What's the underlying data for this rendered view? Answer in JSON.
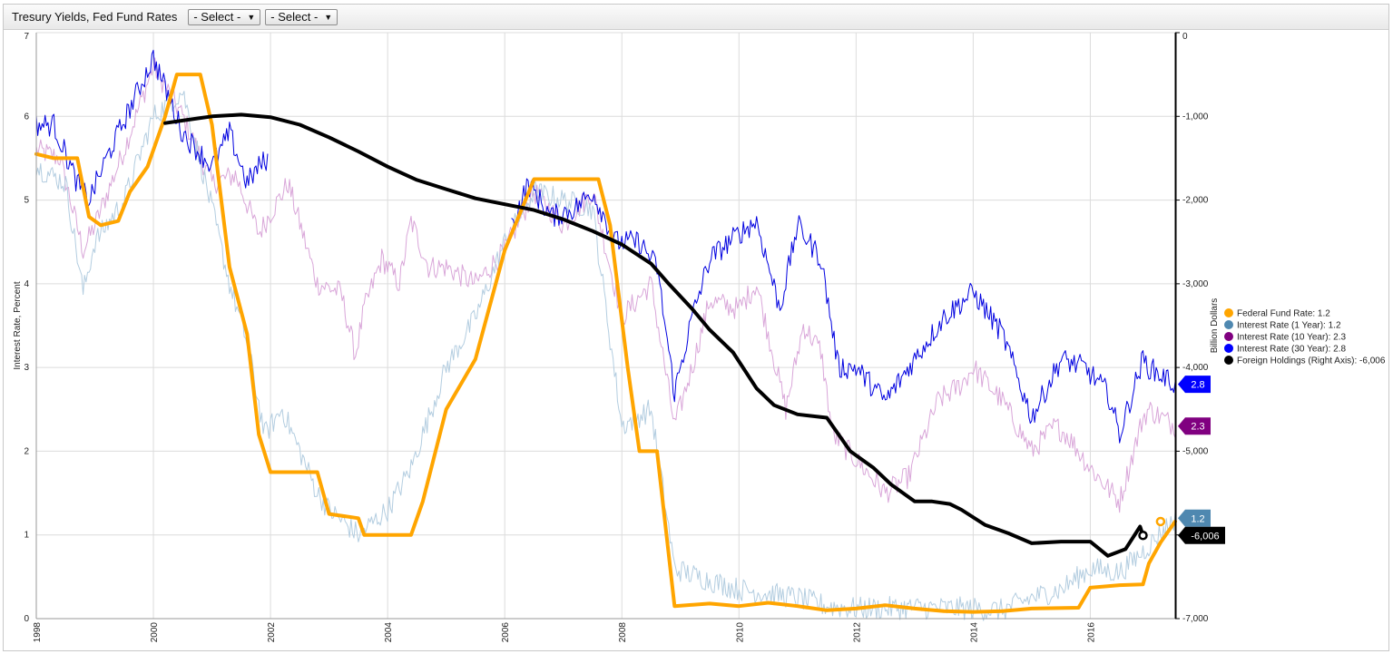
{
  "toolbar": {
    "title": "Tresury Yields, Fed Fund Rates",
    "select1": "- Select -",
    "select2": "- Select -",
    "caret": "▼"
  },
  "chart_data": {
    "type": "line",
    "grid": true,
    "legend_position": "right",
    "x_axis": {
      "min": 1998.0,
      "max": 2017.45,
      "ticks": [
        1998,
        2000,
        2002,
        2004,
        2006,
        2008,
        2010,
        2012,
        2014,
        2016
      ],
      "tick_labels": [
        "1998",
        "2000",
        "2002",
        "2004",
        "2006",
        "2008",
        "2010",
        "2012",
        "2014",
        "2016"
      ]
    },
    "y_left": {
      "label": "Interest Rate, Percent",
      "min": 0,
      "max": 7,
      "ticks": [
        0,
        1,
        2,
        3,
        4,
        5,
        6,
        7
      ],
      "tick_labels": [
        "0",
        "1",
        "2",
        "3",
        "4",
        "5",
        "6",
        "7"
      ]
    },
    "y_right": {
      "label": "Billion Dollars",
      "min": -7000,
      "max": 0,
      "ticks": [
        0,
        -1000,
        -2000,
        -3000,
        -4000,
        -5000,
        -6000,
        -7000
      ],
      "tick_labels": [
        "0",
        "-1,000",
        "-2,000",
        "-3,000",
        "-4,000",
        "-5,000",
        "-6,000",
        "-7,000"
      ]
    },
    "series": [
      {
        "name": "Interest Rate (10 Year)",
        "axis": "left",
        "color": "#800080",
        "legend_color": "#800080",
        "line_color": "#d9a6d9",
        "width": 1,
        "points": [
          [
            1998,
            5.6
          ],
          [
            1998.4,
            5.5
          ],
          [
            1998.8,
            4.4
          ],
          [
            1999.0,
            4.7
          ],
          [
            1999.5,
            5.6
          ],
          [
            2000.0,
            6.6
          ],
          [
            2000.5,
            6.0
          ],
          [
            2001.0,
            5.2
          ],
          [
            2001.4,
            5.3
          ],
          [
            2001.8,
            4.6
          ],
          [
            2002.3,
            5.2
          ],
          [
            2002.8,
            4.0
          ],
          [
            2003.2,
            3.9
          ],
          [
            2003.45,
            3.15
          ],
          [
            2003.6,
            3.7
          ],
          [
            2003.9,
            4.3
          ],
          [
            2004.2,
            4.0
          ],
          [
            2004.4,
            4.75
          ],
          [
            2004.7,
            4.2
          ],
          [
            2005.0,
            4.2
          ],
          [
            2005.5,
            4.0
          ],
          [
            2006.0,
            4.4
          ],
          [
            2006.5,
            5.1
          ],
          [
            2007.0,
            4.7
          ],
          [
            2007.5,
            5.1
          ],
          [
            2008.0,
            3.6
          ],
          [
            2008.5,
            4.0
          ],
          [
            2008.9,
            2.3
          ],
          [
            2009.2,
            3.0
          ],
          [
            2009.5,
            3.8
          ],
          [
            2010.0,
            3.7
          ],
          [
            2010.3,
            4.0
          ],
          [
            2010.8,
            2.5
          ],
          [
            2011.1,
            3.5
          ],
          [
            2011.4,
            3.2
          ],
          [
            2011.6,
            2.2
          ],
          [
            2012.0,
            1.9
          ],
          [
            2012.5,
            1.5
          ],
          [
            2012.9,
            1.7
          ],
          [
            2013.4,
            2.6
          ],
          [
            2013.8,
            2.8
          ],
          [
            2014.0,
            3.0
          ],
          [
            2014.5,
            2.6
          ],
          [
            2015.0,
            2.0
          ],
          [
            2015.4,
            2.3
          ],
          [
            2015.6,
            2.2
          ],
          [
            2016.0,
            1.8
          ],
          [
            2016.5,
            1.4
          ],
          [
            2016.9,
            2.4
          ],
          [
            2017.0,
            2.5
          ],
          [
            2017.45,
            2.3
          ]
        ]
      },
      {
        "name": "Interest Rate (1 Year)",
        "axis": "left",
        "color": "#4f88b0",
        "legend_color": "#4f88b0",
        "line_color": "#b3cde0",
        "width": 1,
        "points": [
          [
            1998,
            5.4
          ],
          [
            1998.5,
            5.2
          ],
          [
            1998.8,
            3.9
          ],
          [
            1999.0,
            4.5
          ],
          [
            1999.5,
            5.0
          ],
          [
            2000.0,
            6.0
          ],
          [
            2000.5,
            6.3
          ],
          [
            2001.0,
            4.9
          ],
          [
            2001.3,
            4.0
          ],
          [
            2001.6,
            3.3
          ],
          [
            2001.9,
            2.2
          ],
          [
            2002.2,
            2.5
          ],
          [
            2002.5,
            2.0
          ],
          [
            2002.8,
            1.5
          ],
          [
            2003.0,
            1.3
          ],
          [
            2003.5,
            1.0
          ],
          [
            2004.0,
            1.3
          ],
          [
            2004.4,
            1.8
          ],
          [
            2005.0,
            3.0
          ],
          [
            2005.5,
            3.6
          ],
          [
            2006.0,
            4.5
          ],
          [
            2006.5,
            5.1
          ],
          [
            2007.0,
            5.0
          ],
          [
            2007.5,
            4.9
          ],
          [
            2008.0,
            2.3
          ],
          [
            2008.5,
            2.5
          ],
          [
            2008.9,
            0.6
          ],
          [
            2009.3,
            0.5
          ],
          [
            2010.0,
            0.35
          ],
          [
            2010.5,
            0.3
          ],
          [
            2011.0,
            0.25
          ],
          [
            2011.5,
            0.15
          ],
          [
            2012.0,
            0.12
          ],
          [
            2013.0,
            0.13
          ],
          [
            2014.0,
            0.12
          ],
          [
            2014.5,
            0.1
          ],
          [
            2015.0,
            0.25
          ],
          [
            2015.5,
            0.35
          ],
          [
            2016.0,
            0.6
          ],
          [
            2016.5,
            0.55
          ],
          [
            2016.9,
            0.8
          ],
          [
            2017.45,
            1.2
          ]
        ]
      },
      {
        "name": "Interest Rate (30 Year)",
        "axis": "left",
        "color": "#0000e0",
        "legend_color": "#0000ff",
        "line_color": "#0000e0",
        "width": 1,
        "gap_after": 2001.95,
        "gap_until": 2006.12,
        "points": [
          [
            1998,
            5.9
          ],
          [
            1998.3,
            5.9
          ],
          [
            1998.7,
            5.2
          ],
          [
            1998.9,
            5.0
          ],
          [
            1999.2,
            5.5
          ],
          [
            1999.6,
            6.1
          ],
          [
            2000.0,
            6.7
          ],
          [
            2000.5,
            5.8
          ],
          [
            2001.0,
            5.4
          ],
          [
            2001.3,
            5.8
          ],
          [
            2001.6,
            5.2
          ],
          [
            2001.8,
            5.4
          ],
          [
            2001.95,
            5.5
          ],
          [
            2006.12,
            4.7
          ],
          [
            2006.4,
            5.2
          ],
          [
            2006.8,
            4.8
          ],
          [
            2007.2,
            4.9
          ],
          [
            2007.5,
            5.1
          ],
          [
            2007.9,
            4.5
          ],
          [
            2008.3,
            4.5
          ],
          [
            2008.6,
            4.2
          ],
          [
            2008.9,
            2.7
          ],
          [
            2009.2,
            3.6
          ],
          [
            2009.5,
            4.3
          ],
          [
            2010.0,
            4.6
          ],
          [
            2010.3,
            4.75
          ],
          [
            2010.7,
            3.7
          ],
          [
            2011.0,
            4.7
          ],
          [
            2011.4,
            4.3
          ],
          [
            2011.7,
            3.0
          ],
          [
            2012.0,
            3.0
          ],
          [
            2012.5,
            2.6
          ],
          [
            2012.9,
            3.0
          ],
          [
            2013.5,
            3.6
          ],
          [
            2014.0,
            3.9
          ],
          [
            2014.5,
            3.4
          ],
          [
            2015.0,
            2.4
          ],
          [
            2015.5,
            3.1
          ],
          [
            2015.9,
            3.0
          ],
          [
            2016.3,
            2.7
          ],
          [
            2016.5,
            2.2
          ],
          [
            2016.9,
            3.1
          ],
          [
            2017.0,
            3.0
          ],
          [
            2017.45,
            2.8
          ]
        ]
      },
      {
        "name": "Federal Fund Rate",
        "axis": "left",
        "color": "#ffa500",
        "legend_color": "#ffa500",
        "line_color": "#ffa500",
        "width": 4,
        "points": [
          [
            1998,
            5.55
          ],
          [
            1998.3,
            5.5
          ],
          [
            1998.7,
            5.5
          ],
          [
            1998.9,
            4.8
          ],
          [
            1999.1,
            4.7
          ],
          [
            1999.4,
            4.75
          ],
          [
            1999.6,
            5.1
          ],
          [
            1999.9,
            5.4
          ],
          [
            2000.2,
            6.0
          ],
          [
            2000.4,
            6.5
          ],
          [
            2000.8,
            6.5
          ],
          [
            2001.0,
            5.9
          ],
          [
            2001.3,
            4.2
          ],
          [
            2001.6,
            3.4
          ],
          [
            2001.8,
            2.2
          ],
          [
            2002.0,
            1.75
          ],
          [
            2002.8,
            1.75
          ],
          [
            2003.0,
            1.25
          ],
          [
            2003.5,
            1.2
          ],
          [
            2003.6,
            1.0
          ],
          [
            2004.4,
            1.0
          ],
          [
            2004.6,
            1.4
          ],
          [
            2005.0,
            2.5
          ],
          [
            2005.5,
            3.1
          ],
          [
            2006.0,
            4.4
          ],
          [
            2006.5,
            5.25
          ],
          [
            2007.6,
            5.25
          ],
          [
            2007.8,
            4.7
          ],
          [
            2008.1,
            3.0
          ],
          [
            2008.3,
            2.0
          ],
          [
            2008.6,
            2.0
          ],
          [
            2008.9,
            0.15
          ],
          [
            2009.5,
            0.18
          ],
          [
            2010.0,
            0.15
          ],
          [
            2010.5,
            0.19
          ],
          [
            2011.0,
            0.15
          ],
          [
            2011.5,
            0.1
          ],
          [
            2012.0,
            0.12
          ],
          [
            2012.5,
            0.16
          ],
          [
            2013.0,
            0.12
          ],
          [
            2013.5,
            0.09
          ],
          [
            2014.0,
            0.08
          ],
          [
            2014.5,
            0.09
          ],
          [
            2015.0,
            0.12
          ],
          [
            2015.8,
            0.13
          ],
          [
            2016.0,
            0.37
          ],
          [
            2016.5,
            0.4
          ],
          [
            2016.9,
            0.41
          ],
          [
            2017.0,
            0.66
          ],
          [
            2017.2,
            0.91
          ],
          [
            2017.45,
            1.16
          ]
        ]
      },
      {
        "name": "Foreign Holdings (Right Axis)",
        "axis": "right",
        "color": "#000000",
        "legend_color": "#000000",
        "line_color": "#000000",
        "width": 4,
        "points": [
          [
            2000.2,
            -1080
          ],
          [
            2000.5,
            -1050
          ],
          [
            2001.0,
            -1000
          ],
          [
            2001.5,
            -980
          ],
          [
            2002.0,
            -1010
          ],
          [
            2002.5,
            -1100
          ],
          [
            2003.0,
            -1250
          ],
          [
            2003.5,
            -1420
          ],
          [
            2004.0,
            -1600
          ],
          [
            2004.5,
            -1760
          ],
          [
            2005.0,
            -1870
          ],
          [
            2005.5,
            -1980
          ],
          [
            2006.0,
            -2050
          ],
          [
            2006.5,
            -2120
          ],
          [
            2007.0,
            -2230
          ],
          [
            2007.5,
            -2370
          ],
          [
            2008.0,
            -2530
          ],
          [
            2008.5,
            -2760
          ],
          [
            2008.8,
            -3000
          ],
          [
            2009.2,
            -3300
          ],
          [
            2009.5,
            -3550
          ],
          [
            2009.9,
            -3820
          ],
          [
            2010.3,
            -4250
          ],
          [
            2010.6,
            -4450
          ],
          [
            2011.0,
            -4560
          ],
          [
            2011.5,
            -4600
          ],
          [
            2011.9,
            -5000
          ],
          [
            2012.3,
            -5200
          ],
          [
            2012.6,
            -5400
          ],
          [
            2013.0,
            -5600
          ],
          [
            2013.3,
            -5600
          ],
          [
            2013.6,
            -5630
          ],
          [
            2013.8,
            -5700
          ],
          [
            2014.2,
            -5880
          ],
          [
            2014.6,
            -5980
          ],
          [
            2015.0,
            -6100
          ],
          [
            2015.5,
            -6080
          ],
          [
            2016.0,
            -6080
          ],
          [
            2016.3,
            -6250
          ],
          [
            2016.6,
            -6170
          ],
          [
            2016.85,
            -5900
          ],
          [
            2016.9,
            -6006
          ]
        ]
      }
    ],
    "legend": [
      {
        "label": "Federal Fund Rate: 1.2",
        "color": "#ffa500"
      },
      {
        "label": "Interest Rate (1 Year): 1.2",
        "color": "#4f88b0"
      },
      {
        "label": "Interest Rate (10 Year): 2.3",
        "color": "#800080"
      },
      {
        "label": "Interest Rate (30 Year): 2.8",
        "color": "#0000ff"
      },
      {
        "label": "Foreign Holdings (Right Axis): -6,006",
        "color": "#000000"
      }
    ],
    "end_badges": [
      {
        "label": "2.8",
        "value": 2.8,
        "axis": "left",
        "color": "#0000ff"
      },
      {
        "label": "2.3",
        "value": 2.3,
        "axis": "left",
        "color": "#800080"
      },
      {
        "label": "1.2",
        "value": 1.2,
        "axis": "left",
        "color": "#4f88b0"
      },
      {
        "label": "-6,006",
        "value": -6006,
        "axis": "right",
        "color": "#000000"
      }
    ],
    "end_markers": [
      {
        "x": 2017.2,
        "y": 1.16,
        "axis": "left",
        "color": "#ffa500"
      },
      {
        "x": 2016.9,
        "y": -6006,
        "axis": "right",
        "color": "#000000"
      }
    ]
  }
}
